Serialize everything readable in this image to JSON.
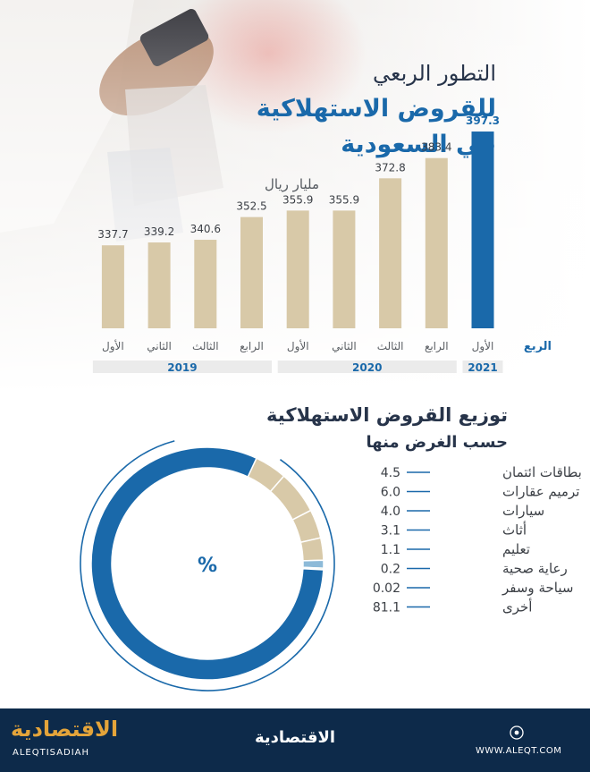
{
  "header": {
    "title_lines": [
      "التطور الربعي",
      "للقروض الاستهلاكية",
      "في السعودية"
    ],
    "unit": "مليار ريال"
  },
  "colors": {
    "bar": "#d8c9a8",
    "highlight": "#1a69aa",
    "title": "#27344a",
    "footer": "#0d2a4a",
    "donut_main": "#1a69aa",
    "donut_light": "#8dbad8",
    "donut_green": "#a6c24a"
  },
  "chart_data": [
    {
      "type": "bar",
      "title": "التطور الربعي للقروض الاستهلاكية في السعودية",
      "ylabel": "مليار ريال",
      "xlabel": "الربع",
      "categories": [
        "الأول",
        "الرابع",
        "الثالث",
        "الثاني",
        "الأول",
        "الرابع",
        "الثالث",
        "الثاني",
        "الأول"
      ],
      "years": [
        "2021",
        "2020",
        "2020",
        "2020",
        "2020",
        "2019",
        "2019",
        "2019",
        "2019"
      ],
      "values": [
        397.3,
        383.4,
        372.8,
        355.9,
        355.9,
        352.5,
        340.6,
        339.2,
        337.7
      ],
      "highlight_index": 0,
      "year_groups": [
        {
          "label": "2021",
          "from": 0,
          "to": 0
        },
        {
          "label": "2020",
          "from": 1,
          "to": 4
        },
        {
          "label": "2019",
          "from": 5,
          "to": 8
        }
      ]
    },
    {
      "type": "pie",
      "title": "توزيع القروض الاستهلاكية",
      "subtitle": "حسب الغرض منها",
      "center_label": "%",
      "categories": [
        "بطاقات ائتمان",
        "ترميم عقارات",
        "سيارات",
        "أثاث",
        "تعليم",
        "رعاية صحية",
        "سياحة وسفر",
        "أخرى"
      ],
      "values": [
        4.5,
        6.0,
        4.0,
        3.1,
        1.1,
        0.2,
        0.02,
        81.1
      ],
      "value_labels": [
        "4.5",
        "6.0",
        "4.0",
        "3.1",
        "1.1",
        "0.2",
        "0.02",
        "81.1"
      ]
    }
  ],
  "footer": {
    "logo_ar": "الاقتصادية",
    "logo_en": "ALEQTISADIAH",
    "center_logo": "الاقتصادية",
    "website": "WWW.ALEQT.COM"
  }
}
